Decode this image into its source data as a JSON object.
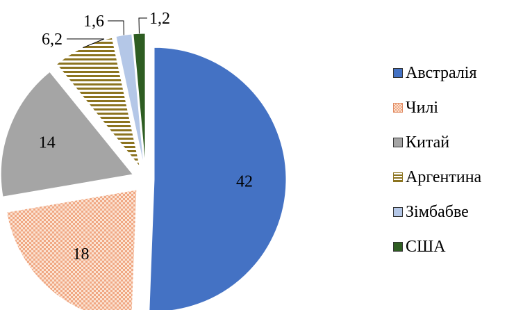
{
  "chart_data": {
    "type": "pie",
    "exploded": true,
    "categories": [
      "Австралія",
      "Чилі",
      "Китай",
      "Аргентина",
      "Зімбабве",
      "США"
    ],
    "values": [
      42,
      18,
      14,
      6.2,
      1.6,
      1.2
    ],
    "data_labels": [
      "42",
      "18",
      "14",
      "6,2",
      "1,6",
      "1,2"
    ],
    "colors": [
      "#4472c4",
      "#f5c6a8",
      "#a5a5a5",
      "#8c7420",
      "#b4c7e7",
      "#2e5d22"
    ],
    "fill_patterns": [
      "solid",
      "checker",
      "solid",
      "horizontal-stripes",
      "solid",
      "solid"
    ],
    "legend_position": "right",
    "title": ""
  }
}
